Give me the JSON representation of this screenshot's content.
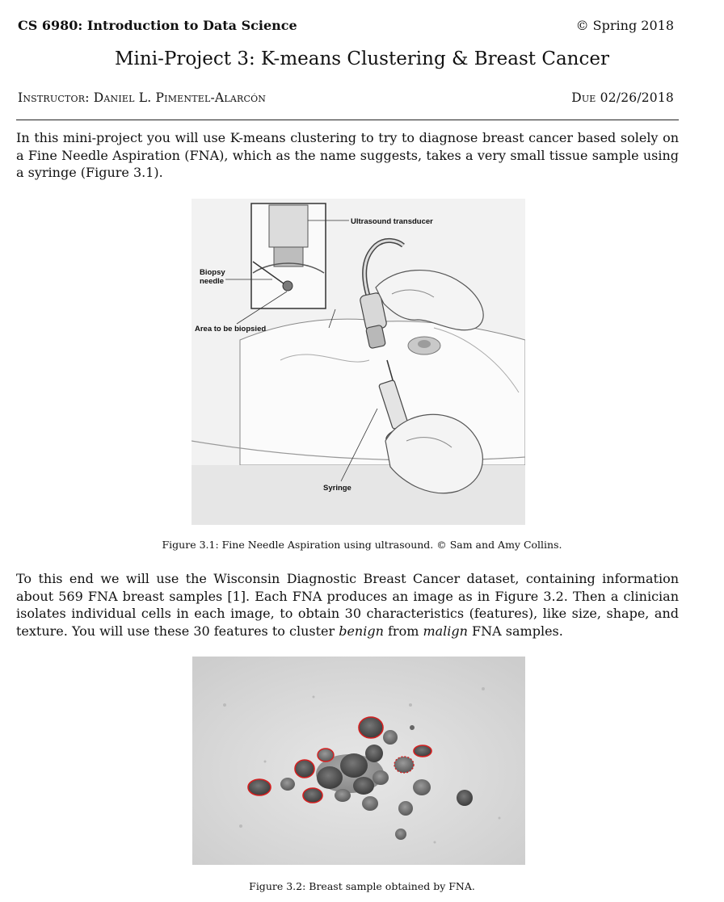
{
  "header": {
    "course": "CS 6980: Introduction to Data Science",
    "term": "© Spring 2018",
    "title": "Mini-Project 3: K-means Clustering & Breast Cancer",
    "instructor": "Instructor: Daniel L. Pimentel-Alarcón",
    "due": "Due 02/26/2018"
  },
  "intro": {
    "text": "In this mini-project you will use K-means clustering to try to diagnose breast cancer based solely on a Fine Needle Aspiration (FNA), which as the name suggests, takes a very small tissue sample using a syringe (Figure 3.1)."
  },
  "figure1": {
    "labels": {
      "transducer": "Ultrasound transducer",
      "needle_line1": "Biopsy",
      "needle_line2": "needle",
      "area": "Area to be biopsied",
      "syringe": "Syringe"
    },
    "caption": "Figure 3.1: Fine Needle Aspiration using ultrasound. © Sam and Amy Collins."
  },
  "body": {
    "before_benign": "To this end we will use the Wisconsin Diagnostic Breast Cancer dataset, containing information about 569 FNA breast samples [1]. Each FNA produces an image as in Figure 3.2. Then a clinician isolates individual cells in each image, to obtain 30 characteristics (features), like size, shape, and texture. You will use these 30 features to cluster ",
    "benign": "benign",
    "from": " from ",
    "malign": "malign",
    "after_malign": " FNA samples."
  },
  "figure2": {
    "caption": "Figure 3.2: Breast sample obtained by FNA."
  },
  "colors": {
    "outline": "#d42020",
    "rule": "#222222"
  }
}
